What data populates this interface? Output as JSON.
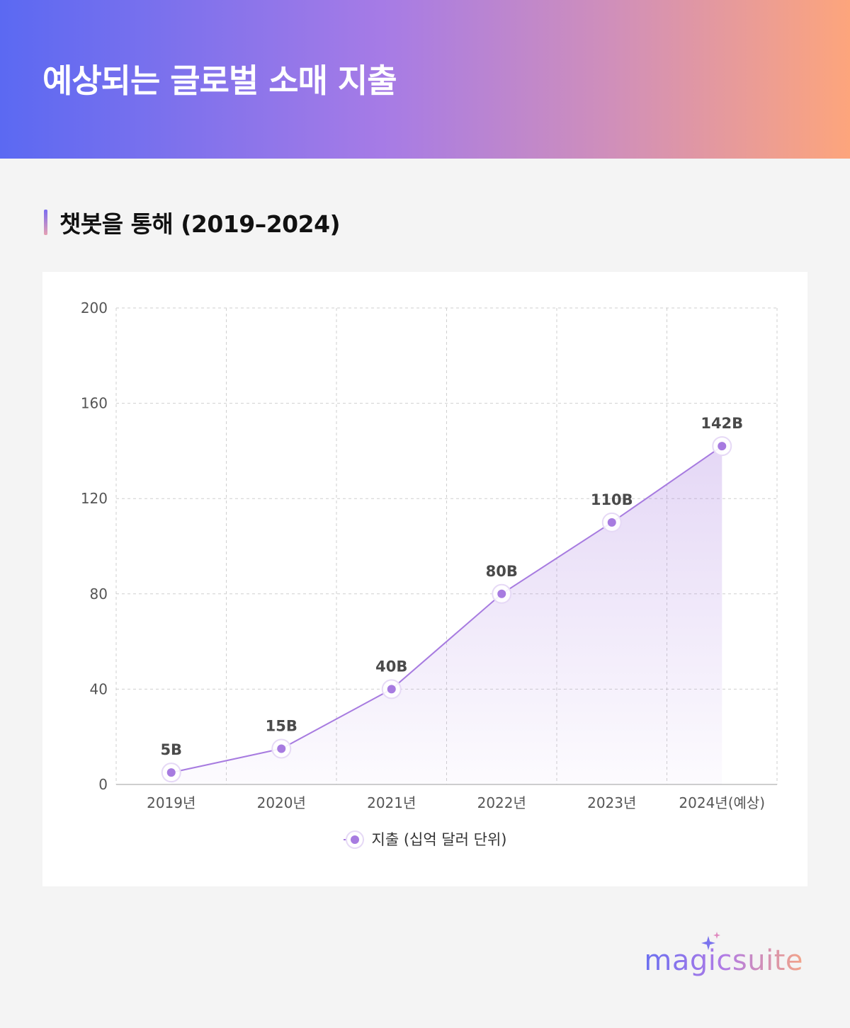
{
  "header": {
    "title": "예상되는 글로벌 소매 지출"
  },
  "subtitle": {
    "text": "챗봇을 통해 (2019–2024)"
  },
  "brand": {
    "name": "magicsuite",
    "icon": "sparkle-icon"
  },
  "chart_data": {
    "type": "area",
    "categories": [
      "2019년",
      "2020년",
      "2021년",
      "2022년",
      "2023년",
      "2024년(예상)"
    ],
    "series": [
      {
        "name": "지출 (십억 달러 단위)",
        "values": [
          5,
          15,
          40,
          80,
          110,
          142
        ],
        "labels": [
          "5B",
          "15B",
          "40B",
          "80B",
          "110B",
          "142B"
        ],
        "color": "#a77be0"
      }
    ],
    "ylim": [
      0,
      200
    ],
    "yticks": [
      0,
      40,
      80,
      120,
      160,
      200
    ],
    "grid": true,
    "legend": "bottom-center"
  }
}
